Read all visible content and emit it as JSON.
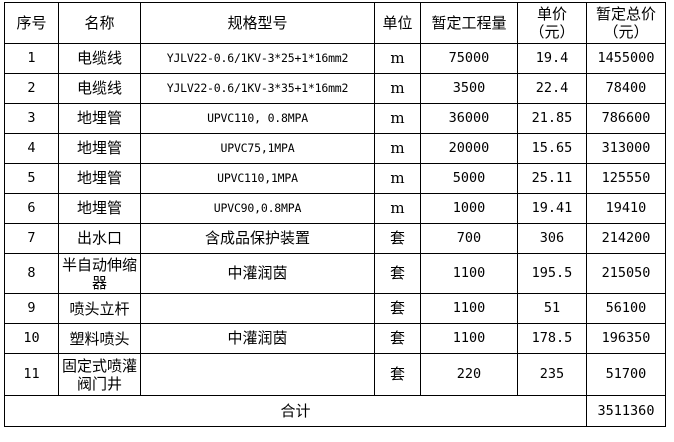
{
  "header": {
    "no": "序号",
    "name": "名称",
    "spec": "规格型号",
    "unit": "单位",
    "qty": "暂定工程量",
    "price": "单价（元）",
    "total": "暂定总价（元）"
  },
  "rows": [
    {
      "no": "1",
      "name": "电缆线",
      "spec": "YJLV22-0.6/1KV-3*25+1*16mm2",
      "unit": "m",
      "qty": "75000",
      "price": "19.4",
      "total": "1455000"
    },
    {
      "no": "2",
      "name": "电缆线",
      "spec": "YJLV22-0.6/1KV-3*35+1*16mm2",
      "unit": "m",
      "qty": "3500",
      "price": "22.4",
      "total": "78400"
    },
    {
      "no": "3",
      "name": "地埋管",
      "spec": "UPVC110, 0.8MPA",
      "unit": "m",
      "qty": "36000",
      "price": "21.85",
      "total": "786600"
    },
    {
      "no": "4",
      "name": "地埋管",
      "spec": "UPVC75,1MPA",
      "unit": "m",
      "qty": "20000",
      "price": "15.65",
      "total": "313000"
    },
    {
      "no": "5",
      "name": "地埋管",
      "spec": "UPVC110,1MPA",
      "unit": "m",
      "qty": "5000",
      "price": "25.11",
      "total": "125550"
    },
    {
      "no": "6",
      "name": "地埋管",
      "spec": "UPVC90,0.8MPA",
      "unit": "m",
      "qty": "1000",
      "price": "19.41",
      "total": "19410"
    },
    {
      "no": "7",
      "name": "出水口",
      "spec": "含成品保护装置",
      "unit": "套",
      "qty": "700",
      "price": "306",
      "total": "214200"
    },
    {
      "no": "8",
      "name": "半自动伸缩器",
      "spec": "中灌润茵",
      "unit": "套",
      "qty": "1100",
      "price": "195.5",
      "total": "215050"
    },
    {
      "no": "9",
      "name": "喷头立杆",
      "spec": "",
      "unit": "套",
      "qty": "1100",
      "price": "51",
      "total": "56100"
    },
    {
      "no": "10",
      "name": "塑料喷头",
      "spec": "中灌润茵",
      "unit": "套",
      "qty": "1100",
      "price": "178.5",
      "total": "196350"
    },
    {
      "no": "11",
      "name": "固定式喷灌阀门井",
      "spec": "",
      "unit": "套",
      "qty": "220",
      "price": "235",
      "total": "51700"
    }
  ],
  "footer": {
    "label": "合计",
    "total": "3511360"
  }
}
